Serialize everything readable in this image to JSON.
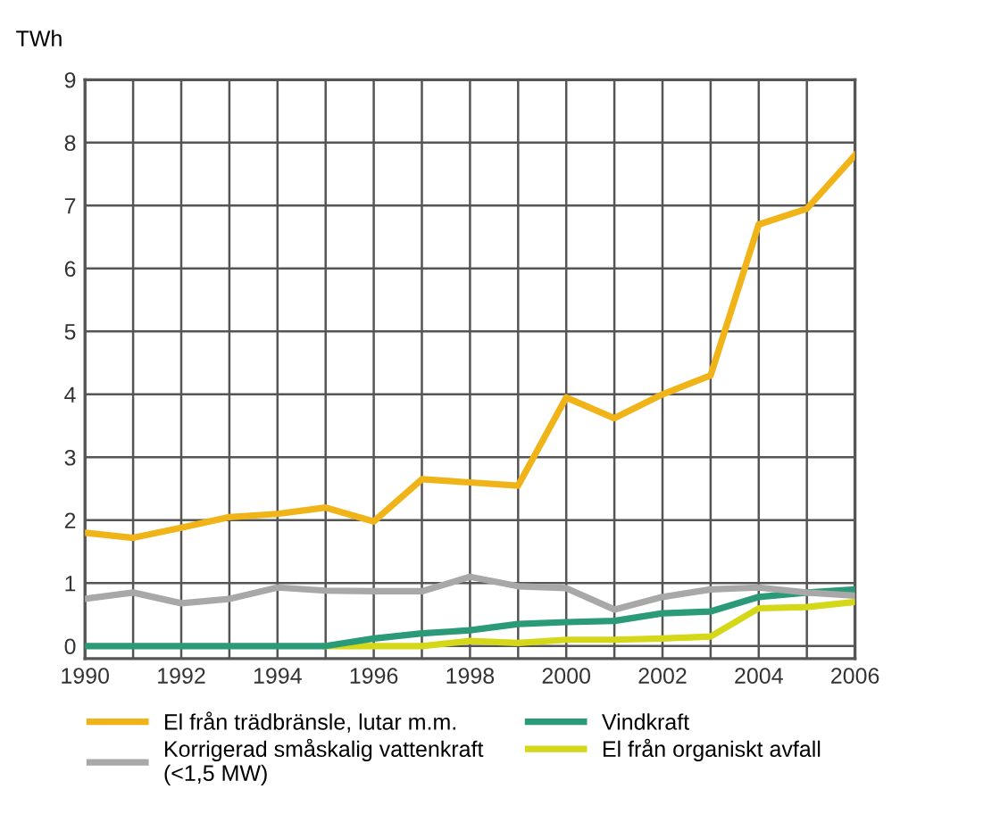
{
  "chart_data": {
    "type": "line",
    "ylabel": "TWh",
    "x": [
      1990,
      1991,
      1992,
      1993,
      1994,
      1995,
      1996,
      1997,
      1998,
      1999,
      2000,
      2001,
      2002,
      2003,
      2004,
      2005,
      2006
    ],
    "series": [
      {
        "name": "El från trädbränsle, lutar m.m.",
        "color": "#f0b418",
        "values": [
          1.8,
          1.72,
          1.88,
          2.05,
          2.1,
          2.2,
          1.98,
          2.65,
          2.6,
          2.55,
          3.95,
          3.62,
          4.0,
          4.3,
          6.7,
          6.95,
          7.8
        ]
      },
      {
        "name": "Korrigerad småskalig vattenkraft (<1,5 MW)",
        "color": "#a8a8a8",
        "values": [
          0.75,
          0.85,
          0.68,
          0.75,
          0.93,
          0.88,
          0.87,
          0.87,
          1.1,
          0.95,
          0.92,
          0.58,
          0.78,
          0.9,
          0.93,
          0.85,
          0.8
        ]
      },
      {
        "name": "Vindkraft",
        "color": "#2a9a78",
        "values": [
          0,
          0,
          0,
          0,
          0,
          0,
          0.12,
          0.2,
          0.25,
          0.35,
          0.38,
          0.4,
          0.52,
          0.55,
          0.78,
          0.85,
          0.9
        ]
      },
      {
        "name": "El från organiskt avfall",
        "color": "#d4d818",
        "values": [
          null,
          null,
          null,
          null,
          null,
          0,
          0,
          0,
          0.08,
          0.05,
          0.1,
          0.1,
          0.12,
          0.15,
          0.6,
          0.62,
          0.7
        ]
      }
    ],
    "xlim": [
      1990,
      2006
    ],
    "xticks": [
      1990,
      {
        "value": 1991,
        "label": null
      },
      1992,
      {
        "value": 1993,
        "label": null
      },
      1994,
      {
        "value": 1995,
        "label": null
      },
      1996,
      {
        "value": 1997,
        "label": null
      },
      1998,
      {
        "value": 1999,
        "label": null
      },
      2000,
      {
        "value": 2001,
        "label": null
      },
      2002,
      {
        "value": 2003,
        "label": null
      },
      2004,
      {
        "value": 2005,
        "label": null
      },
      2006
    ],
    "ylim": [
      -0.2,
      9
    ],
    "yticks": [
      0,
      1,
      2,
      3,
      4,
      5,
      6,
      7,
      8,
      9
    ],
    "grid": true,
    "legend": "bottom",
    "marker": "none",
    "line_style": "solid"
  }
}
